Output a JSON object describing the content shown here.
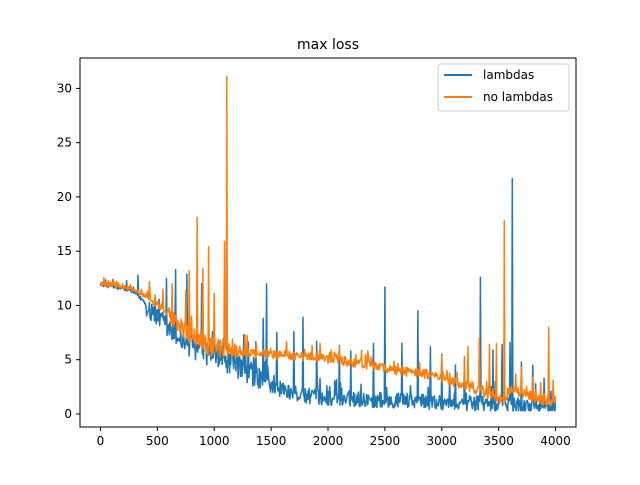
{
  "chart_data": {
    "type": "line",
    "title": "max loss",
    "xlabel": "",
    "ylabel": "",
    "xlim": [
      -180,
      4180
    ],
    "ylim": [
      -1.2,
      32.8
    ],
    "xticks": [
      0,
      500,
      1000,
      1500,
      2000,
      2500,
      3000,
      3500,
      4000
    ],
    "yticks": [
      0,
      5,
      10,
      15,
      20,
      25,
      30
    ],
    "grid": false,
    "legend_position": "upper right",
    "series": [
      {
        "name": "lambdas",
        "color": "#1f77b4",
        "base": [
          [
            0,
            12.0
          ],
          [
            100,
            11.7
          ],
          [
            200,
            11.6
          ],
          [
            300,
            11.2
          ],
          [
            400,
            10.2
          ],
          [
            500,
            8.8
          ],
          [
            600,
            7.8
          ],
          [
            700,
            7.0
          ],
          [
            800,
            6.2
          ],
          [
            900,
            5.8
          ],
          [
            1000,
            5.4
          ],
          [
            1100,
            4.9
          ],
          [
            1200,
            4.4
          ],
          [
            1300,
            3.9
          ],
          [
            1400,
            3.3
          ],
          [
            1500,
            2.7
          ],
          [
            1600,
            2.2
          ],
          [
            1700,
            1.9
          ],
          [
            1800,
            1.7
          ],
          [
            1900,
            1.6
          ],
          [
            2000,
            1.5
          ],
          [
            2200,
            1.4
          ],
          [
            2400,
            1.3
          ],
          [
            2600,
            1.25
          ],
          [
            2800,
            1.2
          ],
          [
            3000,
            1.1
          ],
          [
            3200,
            1.0
          ],
          [
            3400,
            0.9
          ],
          [
            3600,
            0.8
          ],
          [
            3800,
            0.7
          ],
          [
            4000,
            0.5
          ]
        ],
        "spikes": [
          [
            110,
            12.4
          ],
          [
            230,
            12.3
          ],
          [
            330,
            12.8
          ],
          [
            580,
            12.5
          ],
          [
            660,
            13.3
          ],
          [
            760,
            12.9
          ],
          [
            890,
            12.0
          ],
          [
            1260,
            7.3
          ],
          [
            1430,
            8.8
          ],
          [
            1460,
            12.0
          ],
          [
            1550,
            7.5
          ],
          [
            1700,
            7.6
          ],
          [
            1780,
            8.9
          ],
          [
            1900,
            6.7
          ],
          [
            2100,
            6.3
          ],
          [
            2200,
            5.8
          ],
          [
            2400,
            6.5
          ],
          [
            2500,
            11.7
          ],
          [
            2650,
            6.5
          ],
          [
            2790,
            9.5
          ],
          [
            2900,
            6.2
          ],
          [
            3000,
            5.5
          ],
          [
            3120,
            4.5
          ],
          [
            3200,
            5.2
          ],
          [
            3340,
            12.6
          ],
          [
            3450,
            5.9
          ],
          [
            3530,
            6.4
          ],
          [
            3600,
            6.6
          ],
          [
            3620,
            21.7
          ],
          [
            3700,
            4.8
          ],
          [
            3800,
            4.5
          ],
          [
            3900,
            3.3
          ],
          [
            3980,
            2.6
          ]
        ]
      },
      {
        "name": "no lambdas",
        "color": "#ff7f0e",
        "base": [
          [
            0,
            12.0
          ],
          [
            100,
            11.9
          ],
          [
            200,
            11.7
          ],
          [
            300,
            11.5
          ],
          [
            400,
            10.8
          ],
          [
            500,
            10.0
          ],
          [
            600,
            9.2
          ],
          [
            700,
            8.2
          ],
          [
            800,
            7.2
          ],
          [
            900,
            6.5
          ],
          [
            1000,
            6.1
          ],
          [
            1100,
            5.8
          ],
          [
            1200,
            5.7
          ],
          [
            1300,
            5.6
          ],
          [
            1500,
            5.5
          ],
          [
            1700,
            5.35
          ],
          [
            1900,
            5.2
          ],
          [
            2100,
            4.95
          ],
          [
            2300,
            4.6
          ],
          [
            2500,
            4.2
          ],
          [
            2700,
            3.9
          ],
          [
            2900,
            3.6
          ],
          [
            3100,
            3.0
          ],
          [
            3300,
            2.3
          ],
          [
            3500,
            1.4
          ],
          [
            3550,
            1.1
          ],
          [
            3600,
            2.1
          ],
          [
            3700,
            2.0
          ],
          [
            3800,
            1.6
          ],
          [
            3900,
            1.2
          ],
          [
            4000,
            1.0
          ]
        ],
        "spikes": [
          [
            200,
            11.6
          ],
          [
            430,
            12.2
          ],
          [
            550,
            11.5
          ],
          [
            630,
            12.0
          ],
          [
            750,
            11.4
          ],
          [
            780,
            13.2
          ],
          [
            850,
            18.1
          ],
          [
            900,
            13.4
          ],
          [
            950,
            15.4
          ],
          [
            1000,
            11.1
          ],
          [
            1090,
            15.9
          ],
          [
            1110,
            31.1
          ],
          [
            1160,
            6.9
          ],
          [
            1270,
            7.3
          ],
          [
            1290,
            7.2
          ],
          [
            2100,
            6.2
          ],
          [
            2350,
            5.8
          ],
          [
            3000,
            5.4
          ],
          [
            3200,
            5.3
          ],
          [
            3230,
            6.2
          ],
          [
            3330,
            7.0
          ],
          [
            3420,
            6.4
          ],
          [
            3480,
            6.5
          ],
          [
            3550,
            17.8
          ],
          [
            3650,
            3.7
          ],
          [
            3700,
            4.3
          ],
          [
            3800,
            3.4
          ],
          [
            3870,
            2.9
          ],
          [
            3940,
            8.0
          ],
          [
            3980,
            3.1
          ]
        ]
      }
    ]
  }
}
